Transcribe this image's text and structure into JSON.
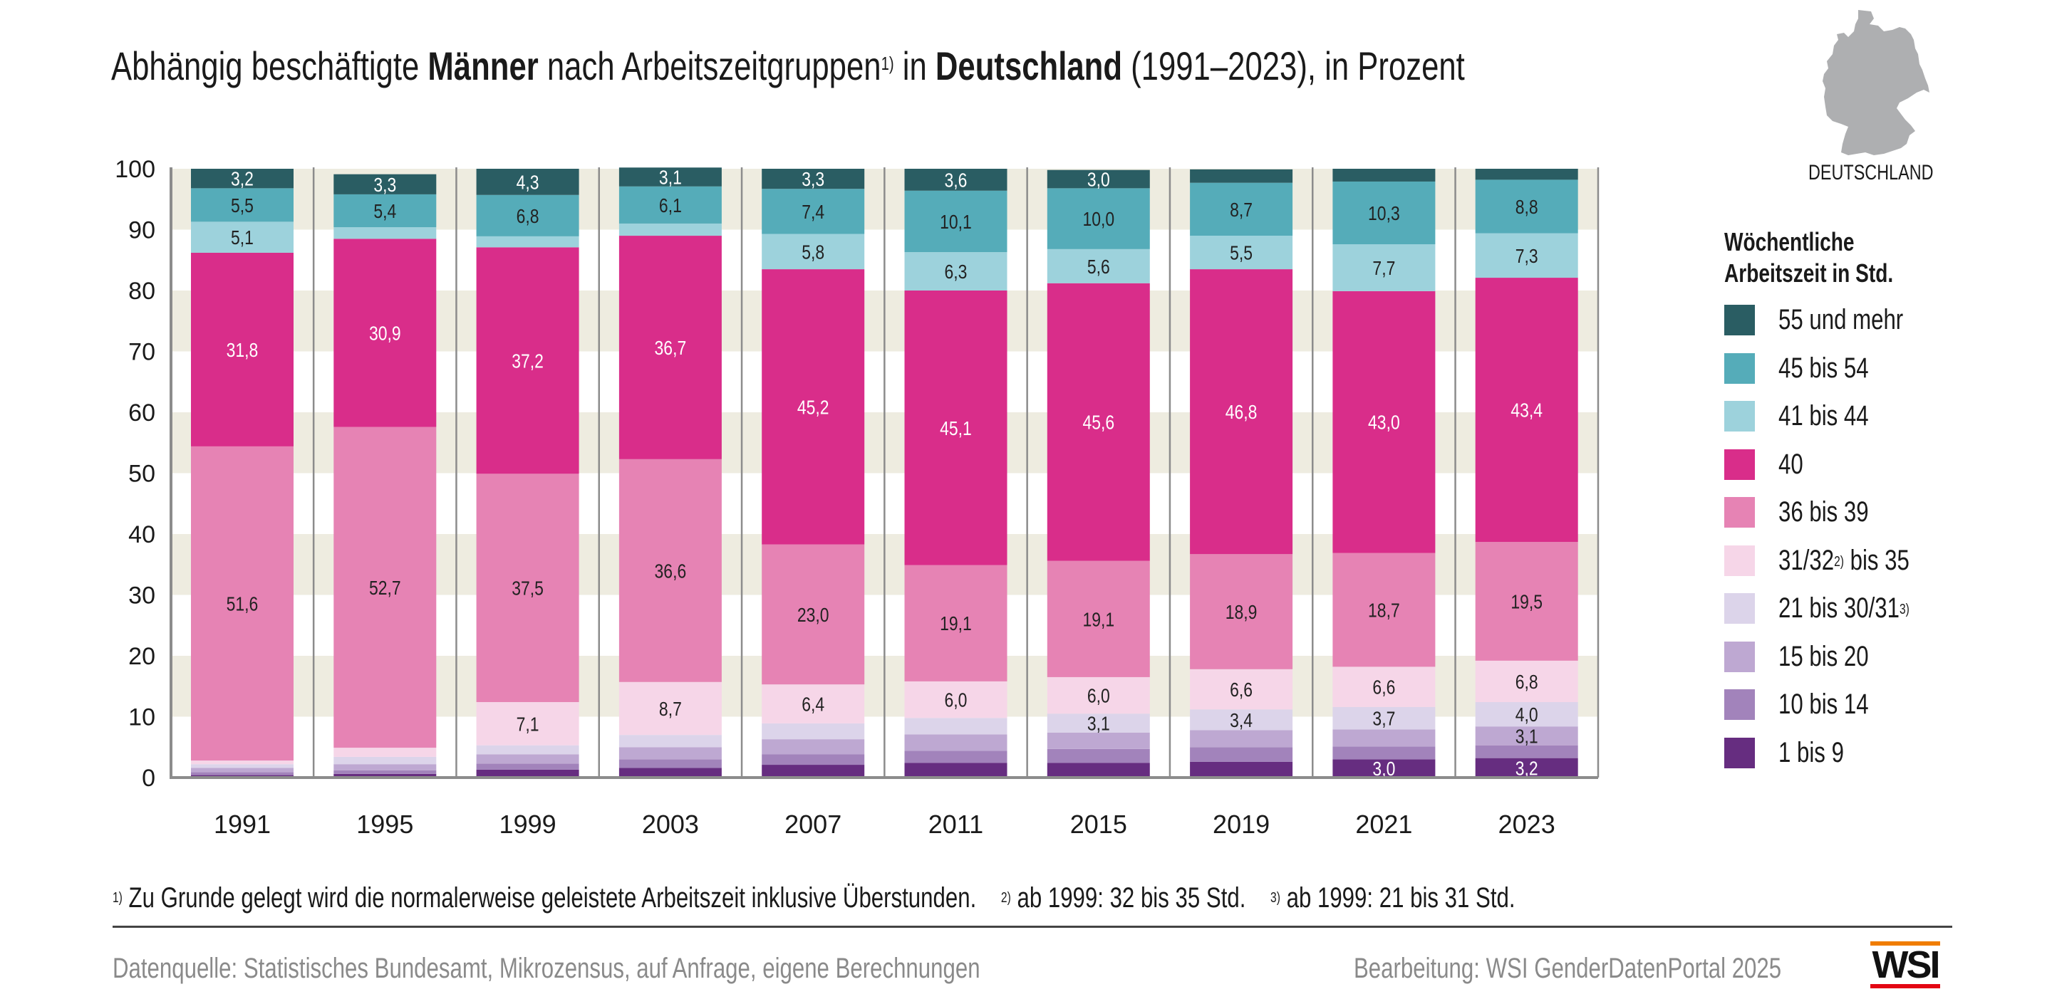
{
  "title": {
    "part1": "Abhängig beschäftigte ",
    "bold1": "Männer",
    "part2": " nach Arbeitszeitgruppen",
    "sup1": "1)",
    "part3": " in ",
    "bold2": "Deutschland",
    "part4": " (1991–2023), in Prozent"
  },
  "map": {
    "label": "DEUTSCHLAND",
    "icon": "germany-map-icon",
    "color": "#aeafb1"
  },
  "legend": {
    "title_line1": "Wöchentliche",
    "title_line2": "Arbeitszeit in Std."
  },
  "footnotes": {
    "n1_mark": "1)",
    "n1_text": " Zu Grunde gelegt wird die normalerweise geleistete Arbeitszeit inklusive Überstunden.",
    "n2_mark": "2)",
    "n2_text": " ab 1999: 32 bis 35 Std.",
    "n3_mark": "3)",
    "n3_text": " ab 1999: 21 bis 31 Std."
  },
  "source": "Datenquelle: Statistisches Bundesamt, Mikrozensus, auf Anfrage, eigene Berechnungen",
  "credit": "Bearbeitung: WSI GenderDatenPortal 2025",
  "logo": {
    "text": "WSI",
    "top_color": "#f07d00",
    "bottom_color": "#e30613"
  },
  "chart_data": {
    "type": "bar",
    "stacked": true,
    "title": "Abhängig beschäftigte Männer nach Arbeitszeitgruppen in Deutschland (1991–2023), in Prozent",
    "xlabel": "",
    "ylabel": "",
    "ylim": [
      0,
      100
    ],
    "yticks": [
      0,
      10,
      20,
      30,
      40,
      50,
      60,
      70,
      80,
      90,
      100
    ],
    "grid": "alternating horizontal bands",
    "legend_position": "right",
    "legend_title": "Wöchentliche Arbeitszeit in Std.",
    "categories": [
      "1991",
      "1995",
      "1999",
      "2003",
      "2007",
      "2011",
      "2015",
      "2019",
      "2021",
      "2023"
    ],
    "series": [
      {
        "name": "1 bis 9",
        "legend": "1 bis 9",
        "color": "#662d80",
        "text_color": "#ffffff",
        "values": [
          0.4,
          0.6,
          1.3,
          1.6,
          2.1,
          2.4,
          2.4,
          2.6,
          3.0,
          3.2
        ],
        "labels": [
          null,
          null,
          null,
          null,
          null,
          null,
          null,
          null,
          "3,0",
          "3,2"
        ]
      },
      {
        "name": "10 bis 14",
        "legend": "10 bis 14",
        "color": "#a283bb",
        "text_color": "#222222",
        "values": [
          0.5,
          0.6,
          1.0,
          1.4,
          1.7,
          2.0,
          2.3,
          2.4,
          2.1,
          2.1
        ],
        "labels": [
          null,
          null,
          null,
          null,
          null,
          null,
          null,
          null,
          null,
          null
        ]
      },
      {
        "name": "15 bis 20",
        "legend": "15 bis 20",
        "color": "#bea8d2",
        "text_color": "#222222",
        "values": [
          0.7,
          1.0,
          1.5,
          2.0,
          2.5,
          2.7,
          2.7,
          2.8,
          2.8,
          3.1
        ],
        "labels": [
          null,
          null,
          null,
          null,
          null,
          null,
          null,
          null,
          null,
          "3,1"
        ]
      },
      {
        "name": "21 bis 30/31",
        "legend": "21 bis 30/31",
        "legend_sup": "3)",
        "color": "#dcd4ea",
        "text_color": "#222222",
        "values": [
          0.6,
          1.2,
          1.5,
          2.0,
          2.6,
          2.7,
          3.1,
          3.4,
          3.7,
          4.0
        ],
        "labels": [
          null,
          null,
          null,
          null,
          null,
          null,
          "3,1",
          "3,4",
          "3,7",
          "4,0"
        ]
      },
      {
        "name": "31/32 bis 35",
        "legend": "31/32",
        "legend_sup": "2)",
        "legend_suffix": " bis 35",
        "color": "#f6d6e8",
        "text_color": "#222222",
        "values": [
          0.6,
          1.5,
          7.1,
          8.7,
          6.4,
          6.0,
          6.0,
          6.6,
          6.6,
          6.8
        ],
        "labels": [
          null,
          null,
          "7,1",
          "8,7",
          "6,4",
          "6,0",
          "6,0",
          "6,6",
          "6,6",
          "6,8"
        ]
      },
      {
        "name": "36 bis 39",
        "legend": "36 bis 39",
        "color": "#e683b4",
        "text_color": "#222222",
        "values": [
          51.6,
          52.7,
          37.5,
          36.6,
          23.0,
          19.1,
          19.1,
          18.9,
          18.7,
          19.5
        ],
        "labels": [
          "51,6",
          "52,7",
          "37,5",
          "36,6",
          "23,0",
          "19,1",
          "19,1",
          "18,9",
          "18,7",
          "19,5"
        ]
      },
      {
        "name": "40",
        "legend": "40",
        "color": "#d92d8a",
        "text_color": "#ffffff",
        "values": [
          31.8,
          30.9,
          37.2,
          36.7,
          45.2,
          45.1,
          45.6,
          46.8,
          43.0,
          43.4
        ],
        "labels": [
          "31,8",
          "30,9",
          "37,2",
          "36,7",
          "45,2",
          "45,1",
          "45,6",
          "46,8",
          "43,0",
          "43,4"
        ]
      },
      {
        "name": "41 bis 44",
        "legend": "41 bis 44",
        "color": "#9dd2dc",
        "text_color": "#222222",
        "values": [
          5.1,
          1.9,
          1.8,
          2.0,
          5.8,
          6.3,
          5.6,
          5.5,
          7.7,
          7.3
        ],
        "labels": [
          "5,1",
          null,
          null,
          null,
          "5,8",
          "6,3",
          "5,6",
          "5,5",
          "7,7",
          "7,3"
        ]
      },
      {
        "name": "45 bis 54",
        "legend": "45 bis 54",
        "color": "#55acb9",
        "text_color": "#222222",
        "values": [
          5.5,
          5.4,
          6.8,
          6.1,
          7.4,
          10.1,
          10.0,
          8.7,
          10.3,
          8.8
        ],
        "labels": [
          "5,5",
          "5,4",
          "6,8",
          "6,1",
          "7,4",
          "10,1",
          "10,0",
          "8,7",
          "10,3",
          "8,8"
        ]
      },
      {
        "name": "55 und mehr",
        "legend": "55 und mehr",
        "color": "#2a5d63",
        "text_color": "#ffffff",
        "values": [
          3.2,
          3.3,
          4.3,
          3.1,
          3.3,
          3.6,
          3.0,
          2.2,
          2.1,
          1.8
        ],
        "labels": [
          "3,2",
          "3,3",
          "4,3",
          "3,1",
          "3,3",
          "3,6",
          "3,0",
          null,
          null,
          null
        ]
      }
    ]
  }
}
